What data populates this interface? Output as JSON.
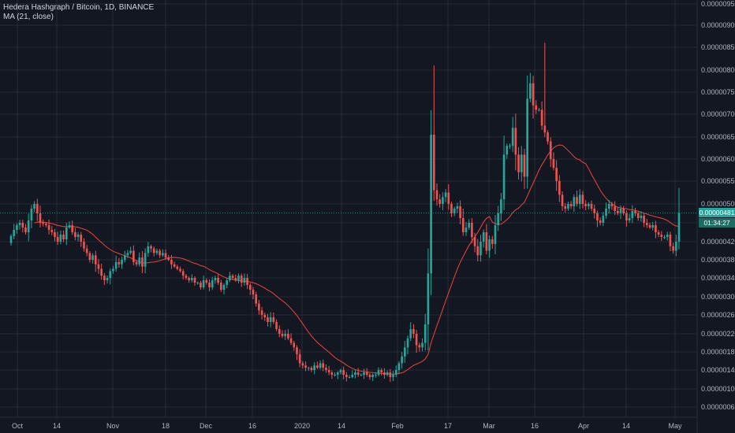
{
  "legend": {
    "title": "Hedera Hashgraph / Bitcoin, 1D, BINANCE",
    "indicator": "MA (21, close)"
  },
  "colors": {
    "background": "#131722",
    "grid": "#363a45",
    "up": "#26a69a",
    "down": "#ef5350",
    "ma": "#f44336",
    "last_line": "#26a69a"
  },
  "price_scale": {
    "last_price_label": "0.00000481",
    "countdown_label": "01:34:27",
    "countdown_partial": "0."
  },
  "chart_data": {
    "type": "candlestick",
    "title": "Hedera Hashgraph / Bitcoin, 1D, BINANCE",
    "xlabel": "",
    "ylabel": "",
    "y_tick_labels": [
      "0.00000950",
      "0.00000900",
      "0.00000850",
      "0.00000800",
      "0.00000750",
      "0.00000700",
      "0.00000650",
      "0.00000600",
      "0.00000550",
      "0.00000500",
      "0.00000460",
      "0.00000420",
      "0.00000380",
      "0.00000340",
      "0.00000300",
      "0.00000260",
      "0.00000220",
      "0.00000180",
      "0.00000140",
      "0.00000100",
      "0.00000065"
    ],
    "y_tick_values": [
      9.5,
      9.0,
      8.5,
      8.0,
      7.5,
      7.0,
      6.5,
      6.0,
      5.5,
      5.0,
      4.6,
      4.2,
      3.8,
      3.4,
      3.0,
      2.6,
      2.2,
      1.8,
      1.4,
      1.0,
      0.65
    ],
    "y_unit_note": "values in 1e-6 BTC",
    "x_tick_labels": [
      "Oct",
      "14",
      "Nov",
      "18",
      "Dec",
      "16",
      "2020",
      "14",
      "Feb",
      "17",
      "Mar",
      "16",
      "Apr",
      "14",
      "May"
    ],
    "ma_period": 21,
    "last_price": 4.81,
    "close": [
      4.32,
      4.45,
      4.55,
      4.6,
      4.5,
      4.4,
      4.65,
      4.9,
      5.0,
      4.8,
      4.6,
      4.58,
      4.55,
      4.45,
      4.4,
      4.3,
      4.2,
      4.35,
      4.25,
      4.5,
      4.55,
      4.4,
      4.3,
      4.35,
      4.2,
      4.05,
      3.95,
      3.8,
      3.9,
      3.7,
      3.6,
      3.45,
      3.35,
      3.4,
      3.55,
      3.6,
      3.75,
      3.7,
      3.8,
      3.9,
      3.95,
      4.0,
      3.75,
      3.7,
      3.85,
      3.65,
      3.95,
      4.1,
      4.05,
      3.95,
      4.0,
      3.9,
      3.95,
      3.85,
      3.8,
      3.7,
      3.65,
      3.6,
      3.55,
      3.45,
      3.4,
      3.35,
      3.4,
      3.3,
      3.3,
      3.2,
      3.35,
      3.3,
      3.2,
      3.35,
      3.4,
      3.3,
      3.15,
      3.25,
      3.35,
      3.45,
      3.4,
      3.35,
      3.45,
      3.3,
      3.4,
      3.25,
      3.15,
      3.05,
      2.85,
      2.7,
      2.6,
      2.55,
      2.45,
      2.55,
      2.45,
      2.3,
      2.2,
      2.15,
      2.2,
      2.1,
      2.0,
      1.9,
      1.75,
      1.55,
      1.5,
      1.45,
      1.45,
      1.4,
      1.5,
      1.45,
      1.55,
      1.45,
      1.4,
      1.35,
      1.3,
      1.3,
      1.35,
      1.4,
      1.3,
      1.25,
      1.25,
      1.3,
      1.35,
      1.3,
      1.3,
      1.35,
      1.3,
      1.25,
      1.3,
      1.3,
      1.4,
      1.35,
      1.3,
      1.35,
      1.25,
      1.3,
      1.4,
      1.55,
      1.7,
      1.9,
      2.1,
      2.3,
      2.2,
      1.95,
      1.9,
      2.0,
      2.4,
      3.5,
      6.55,
      5.3,
      5.1,
      5.0,
      5.15,
      5.25,
      5.0,
      4.8,
      4.9,
      4.95,
      4.7,
      4.4,
      4.5,
      4.6,
      4.3,
      4.1,
      3.9,
      4.2,
      4.4,
      4.0,
      4.25,
      4.15,
      4.55,
      4.8,
      5.1,
      6.1,
      6.3,
      6.3,
      6.7,
      6.1,
      5.7,
      6.1,
      5.6,
      7.35,
      7.7,
      7.2,
      7.1,
      7.1,
      6.75,
      6.6,
      6.4,
      6.0,
      5.8,
      5.5,
      5.2,
      4.95,
      4.9,
      5.0,
      4.95,
      5.15,
      5.0,
      5.2,
      5.0,
      4.95,
      5.0,
      4.9,
      4.8,
      4.65,
      4.6,
      4.75,
      4.9,
      5.0,
      4.95,
      4.85,
      4.8,
      4.9,
      4.8,
      4.65,
      4.7,
      4.85,
      4.8,
      4.7,
      4.75,
      4.6,
      4.55,
      4.5,
      4.55,
      4.4,
      4.35,
      4.3,
      4.3,
      4.35,
      4.1,
      4.0,
      4.2,
      4.81
    ]
  }
}
